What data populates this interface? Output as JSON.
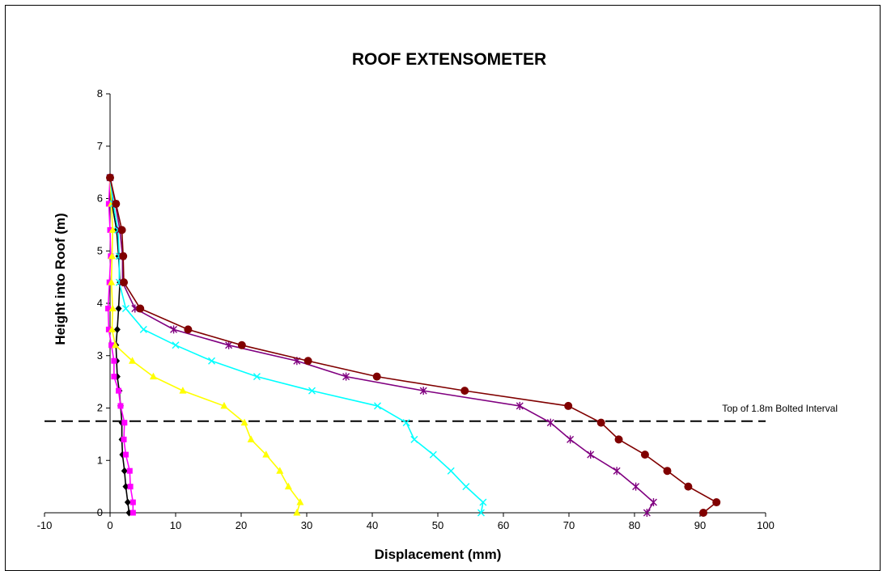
{
  "chart_data": {
    "type": "line",
    "title": "ROOF EXTENSOMETER",
    "xlabel": "Displacement (mm)",
    "ylabel": "Height into Roof (m)",
    "xlim": [
      -10,
      100
    ],
    "ylim": [
      0,
      8
    ],
    "xticks": [
      "-10",
      "0",
      "10",
      "20",
      "30",
      "40",
      "50",
      "60",
      "70",
      "80",
      "90",
      "100"
    ],
    "yticks": [
      "0",
      "1",
      "2",
      "3",
      "4",
      "5",
      "6",
      "7",
      "8"
    ],
    "grid": false,
    "legend": "none",
    "series": [
      {
        "color": "#000000",
        "marker": "diamond",
        "points": [
          [
            0,
            6.4
          ],
          [
            0.3,
            5.9
          ],
          [
            1.0,
            5.4
          ],
          [
            1.3,
            4.9
          ],
          [
            1.5,
            4.4
          ],
          [
            1.3,
            3.9
          ],
          [
            1.1,
            3.5
          ],
          [
            0.9,
            3.2
          ],
          [
            1.0,
            2.9
          ],
          [
            1.1,
            2.6
          ],
          [
            1.4,
            2.33
          ],
          [
            1.6,
            2.04
          ],
          [
            1.8,
            1.72
          ],
          [
            1.8,
            1.4
          ],
          [
            1.9,
            1.11
          ],
          [
            2.2,
            0.8
          ],
          [
            2.4,
            0.5
          ],
          [
            2.7,
            0.2
          ],
          [
            2.9,
            0.0
          ]
        ]
      },
      {
        "color": "#ff00ff",
        "marker": "square",
        "points": [
          [
            0,
            6.4
          ],
          [
            -0.2,
            5.9
          ],
          [
            0.0,
            5.4
          ],
          [
            0.1,
            4.9
          ],
          [
            -0.1,
            4.4
          ],
          [
            -0.3,
            3.9
          ],
          [
            -0.2,
            3.5
          ],
          [
            0.2,
            3.2
          ],
          [
            0.6,
            2.9
          ],
          [
            0.6,
            2.6
          ],
          [
            1.3,
            2.33
          ],
          [
            1.6,
            2.04
          ],
          [
            2.2,
            1.72
          ],
          [
            2.1,
            1.4
          ],
          [
            2.4,
            1.11
          ],
          [
            3.0,
            0.8
          ],
          [
            3.1,
            0.5
          ],
          [
            3.5,
            0.2
          ],
          [
            3.5,
            0.0
          ]
        ]
      },
      {
        "color": "#ffff00",
        "marker": "triangle",
        "points": [
          [
            0,
            6.4
          ],
          [
            0.2,
            5.9
          ],
          [
            0.4,
            5.4
          ],
          [
            0.3,
            4.9
          ],
          [
            0.2,
            4.4
          ],
          [
            0.4,
            3.9
          ],
          [
            0.3,
            3.5
          ],
          [
            0.8,
            3.2
          ],
          [
            3.4,
            2.9
          ],
          [
            6.6,
            2.6
          ],
          [
            11.1,
            2.33
          ],
          [
            17.4,
            2.04
          ],
          [
            20.5,
            1.72
          ],
          [
            21.5,
            1.4
          ],
          [
            23.8,
            1.11
          ],
          [
            25.9,
            0.8
          ],
          [
            27.2,
            0.5
          ],
          [
            29.0,
            0.2
          ],
          [
            28.5,
            0.0
          ]
        ]
      },
      {
        "color": "#00ffff",
        "marker": "x",
        "points": [
          [
            0,
            6.4
          ],
          [
            0.5,
            5.9
          ],
          [
            1.2,
            5.4
          ],
          [
            1.4,
            4.9
          ],
          [
            1.4,
            4.4
          ],
          [
            2.4,
            3.9
          ],
          [
            5.1,
            3.5
          ],
          [
            10.0,
            3.2
          ],
          [
            15.5,
            2.9
          ],
          [
            22.4,
            2.6
          ],
          [
            30.8,
            2.33
          ],
          [
            40.8,
            2.04
          ],
          [
            45.2,
            1.72
          ],
          [
            46.4,
            1.4
          ],
          [
            49.3,
            1.11
          ],
          [
            52.0,
            0.8
          ],
          [
            54.3,
            0.5
          ],
          [
            56.9,
            0.2
          ],
          [
            56.6,
            0.0
          ]
        ]
      },
      {
        "color": "#800080",
        "marker": "star",
        "points": [
          [
            0,
            6.4
          ],
          [
            0.8,
            5.9
          ],
          [
            1.5,
            5.4
          ],
          [
            1.9,
            4.9
          ],
          [
            1.9,
            4.4
          ],
          [
            3.8,
            3.9
          ],
          [
            9.7,
            3.5
          ],
          [
            18.1,
            3.2
          ],
          [
            28.5,
            2.9
          ],
          [
            36.0,
            2.6
          ],
          [
            47.8,
            2.33
          ],
          [
            62.5,
            2.04
          ],
          [
            67.2,
            1.72
          ],
          [
            70.2,
            1.4
          ],
          [
            73.3,
            1.11
          ],
          [
            77.3,
            0.8
          ],
          [
            80.2,
            0.5
          ],
          [
            82.9,
            0.2
          ],
          [
            81.9,
            0.0
          ]
        ]
      },
      {
        "color": "#800000",
        "marker": "circle",
        "points": [
          [
            0,
            6.4
          ],
          [
            0.9,
            5.9
          ],
          [
            1.8,
            5.4
          ],
          [
            2.0,
            4.9
          ],
          [
            2.1,
            4.4
          ],
          [
            4.6,
            3.9
          ],
          [
            11.9,
            3.5
          ],
          [
            20.1,
            3.2
          ],
          [
            30.2,
            2.9
          ],
          [
            40.7,
            2.6
          ],
          [
            54.1,
            2.33
          ],
          [
            69.9,
            2.04
          ],
          [
            74.9,
            1.72
          ],
          [
            77.6,
            1.4
          ],
          [
            81.6,
            1.11
          ],
          [
            85.0,
            0.8
          ],
          [
            88.2,
            0.5
          ],
          [
            92.5,
            0.2
          ],
          [
            90.5,
            0.0
          ]
        ]
      }
    ],
    "reference_line": {
      "y": 1.75,
      "style": "dashed",
      "color": "#000000",
      "label": "Top of 1.8m Bolted Interval"
    }
  }
}
